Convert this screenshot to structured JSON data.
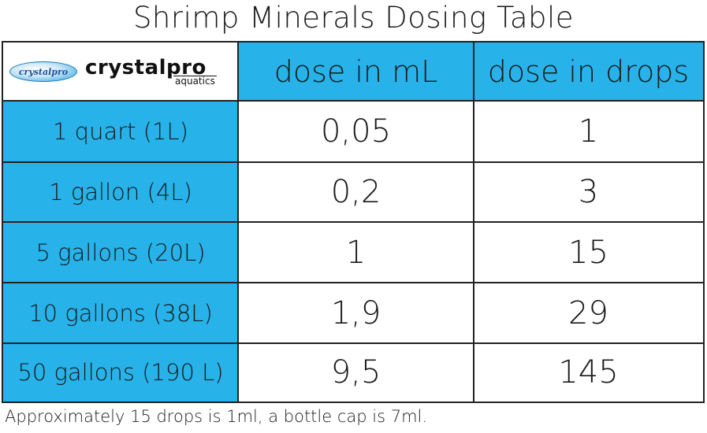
{
  "title": "Shrimp Minerals Dosing Table",
  "logo": {
    "badge_text": "crystalpro",
    "brand_main": "crystalpro",
    "brand_sub": "aquatics"
  },
  "headers": {
    "col1": "dose in mL",
    "col2": "dose in drops"
  },
  "rows": [
    {
      "volume": "1 quart (1L)",
      "ml": "0,05",
      "drops": "1"
    },
    {
      "volume": "1 gallon (4L)",
      "ml": "0,2",
      "drops": "3"
    },
    {
      "volume": "5 gallons (20L)",
      "ml": "1",
      "drops": "15"
    },
    {
      "volume": "10 gallons (38L)",
      "ml": "1,9",
      "drops": "29"
    },
    {
      "volume": "50 gallons (190 L)",
      "ml": "9,5",
      "drops": "145"
    }
  ],
  "footnote": "Approximately 15 drops is 1ml, a bottle cap is 7ml.",
  "colors": {
    "accent": "#27b3ea",
    "border": "#222222"
  }
}
